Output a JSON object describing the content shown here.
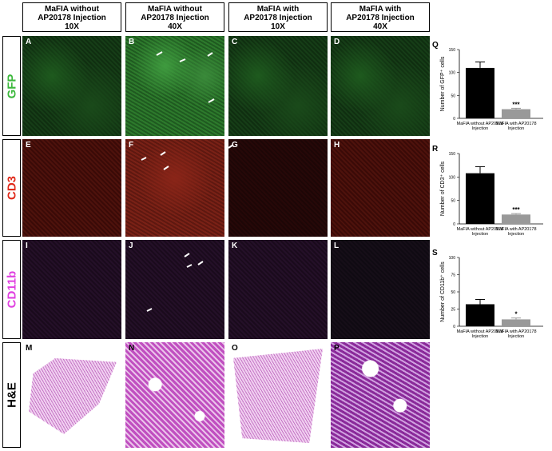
{
  "figure": {
    "column_headers": [
      [
        "MaFIA without",
        "AP20178 Injection",
        "10X"
      ],
      [
        "MaFIA without",
        "AP20178 Injection",
        "40X"
      ],
      [
        "MaFIA with",
        "AP20178 Injection",
        "10X"
      ],
      [
        "MaFIA with",
        "AP20178 Injection",
        "40X"
      ]
    ],
    "row_labels": [
      {
        "text": "GFP",
        "color": "#3cb83c"
      },
      {
        "text": "CD3",
        "color": "#e02a1a"
      },
      {
        "text": "CD11b",
        "color": "#e040e0"
      },
      {
        "text": "H&E",
        "color": "#000000"
      }
    ],
    "panel_letters": [
      "A",
      "B",
      "C",
      "D",
      "E",
      "F",
      "G",
      "H",
      "I",
      "J",
      "K",
      "L",
      "M",
      "N",
      "O",
      "P"
    ]
  },
  "chart_data": [
    {
      "type": "bar",
      "label": "Q",
      "ylabel": "Number of GFP⁺ cells",
      "categories": [
        "MaFIA without AP20178 Injection",
        "MaFIA with AP20178 Injection"
      ],
      "series": [
        {
          "values": [
            110,
            20
          ],
          "errors": [
            13,
            2
          ],
          "colors": [
            "#000000",
            "#999999"
          ]
        }
      ],
      "significance": {
        "category": "MaFIA with AP20178 Injection",
        "text": "***"
      },
      "ylim": [
        0,
        150
      ],
      "yticks": [
        0,
        50,
        100,
        150
      ]
    },
    {
      "type": "bar",
      "label": "R",
      "ylabel": "Number of CD3⁺ cells",
      "categories": [
        "MaFIA without AP20178 Injection",
        "MaFIA with AP20178 Injection"
      ],
      "series": [
        {
          "values": [
            108,
            20
          ],
          "errors": [
            14,
            2
          ],
          "colors": [
            "#000000",
            "#999999"
          ]
        }
      ],
      "significance": {
        "category": "MaFIA with AP20178 Injection",
        "text": "***"
      },
      "ylim": [
        0,
        150
      ],
      "yticks": [
        0,
        50,
        100,
        150
      ]
    },
    {
      "type": "bar",
      "label": "S",
      "ylabel": "Number of CD11b⁺ cells",
      "categories": [
        "MaFIA without AP20178 Injection",
        "MaFIA with AP20178 Injection"
      ],
      "series": [
        {
          "values": [
            32,
            10
          ],
          "errors": [
            7,
            2
          ],
          "colors": [
            "#000000",
            "#999999"
          ]
        }
      ],
      "significance": {
        "category": "MaFIA with AP20178 Injection",
        "text": "*"
      },
      "ylim": [
        0,
        100
      ],
      "yticks": [
        0,
        25,
        50,
        75,
        100
      ]
    }
  ]
}
